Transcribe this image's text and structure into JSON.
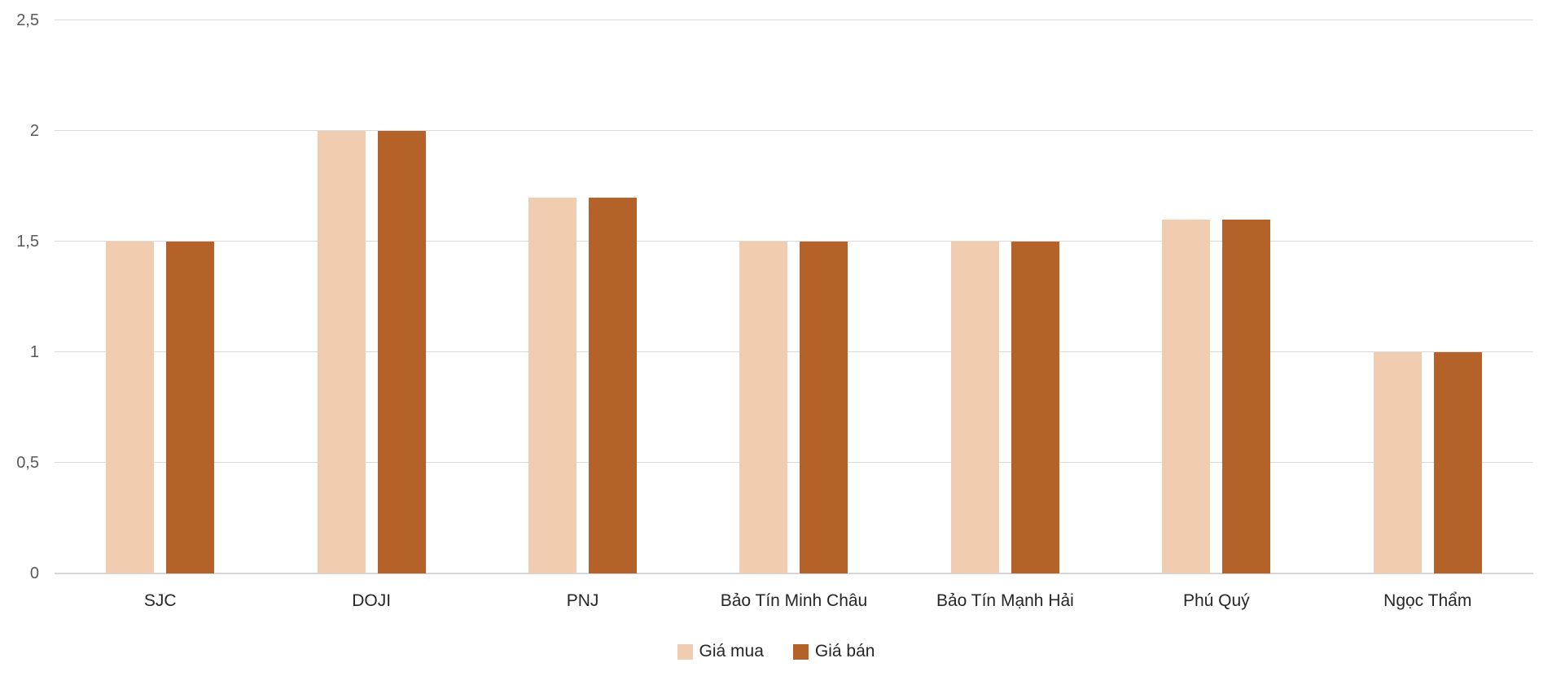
{
  "chart_data": {
    "type": "bar",
    "title": "",
    "categories": [
      "SJC",
      "DOJI",
      "PNJ",
      "Bảo Tín Minh Châu",
      "Bảo Tín Mạnh Hải",
      "Phú Quý",
      "Ngọc Thẩm"
    ],
    "series": [
      {
        "name": "Giá mua",
        "color": "#f0cdb1",
        "values": [
          1.5,
          2,
          1.7,
          1.5,
          1.5,
          1.6,
          1
        ]
      },
      {
        "name": "Giá bán",
        "color": "#b5612a",
        "values": [
          1.5,
          2,
          1.7,
          1.5,
          1.5,
          1.6,
          1
        ]
      }
    ],
    "xlabel": "",
    "ylabel": "",
    "ylim": [
      0,
      2.5
    ],
    "yticks": [
      {
        "value": 0,
        "label": "0"
      },
      {
        "value": 0.5,
        "label": "0,5"
      },
      {
        "value": 1,
        "label": "1"
      },
      {
        "value": 1.5,
        "label": "1,5"
      },
      {
        "value": 2,
        "label": "2"
      },
      {
        "value": 2.5,
        "label": "2,5"
      }
    ],
    "decimal_separator": ",",
    "grid": "horizontal",
    "legend_position": "bottom"
  },
  "colors": {
    "gridline": "#d9d9d9",
    "axis_line": "#d6d6d6",
    "tick_text": "#595959",
    "category_text": "#262626",
    "legend_text": "#262626"
  }
}
